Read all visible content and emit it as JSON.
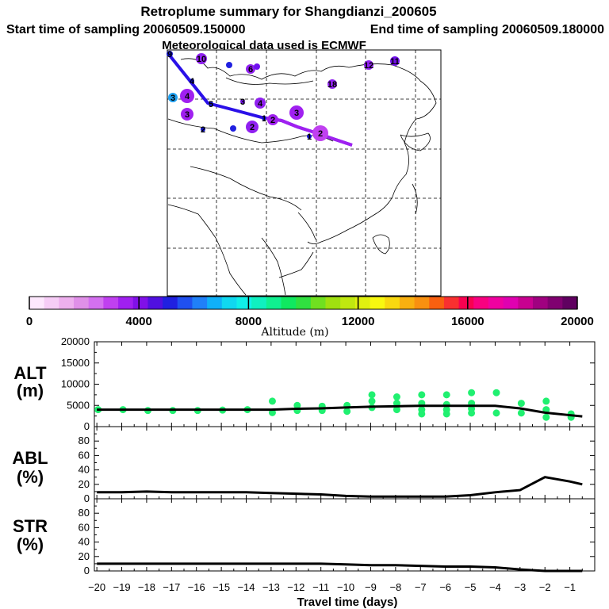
{
  "titles": {
    "line1": "Retroplume summary for Shangdianzi_200605",
    "start": "Start time of sampling 20060509.150000",
    "end": "End time of sampling 20060509.180000",
    "met": "Meteorological data used is ECMWF"
  },
  "colorbar": {
    "colors": [
      "#fde8fd",
      "#f6cdf6",
      "#eeb0ee",
      "#e090e8",
      "#d470f0",
      "#c040f0",
      "#a020f0",
      "#8010e8",
      "#5010e0",
      "#2020e0",
      "#2050f0",
      "#2080f8",
      "#10b0f8",
      "#10d8f0",
      "#10f0e8",
      "#10f0c0",
      "#10f090",
      "#10e860",
      "#30e040",
      "#70e020",
      "#a0e010",
      "#c0e810",
      "#e0f010",
      "#f8f810",
      "#f8d810",
      "#f8b010",
      "#f89010",
      "#f86010",
      "#f83030",
      "#f80050",
      "#f80080",
      "#f000a0",
      "#e000b0",
      "#c80090",
      "#a00080",
      "#800070",
      "#600060"
    ],
    "ticks": [
      0,
      4000,
      8000,
      12000,
      16000,
      20000
    ],
    "label": "Altitude (m)"
  },
  "map": {
    "markers": [
      {
        "label": "9",
        "color": "#1010d0"
      },
      {
        "label": "10",
        "color": "#9020f0"
      },
      {
        "label": "",
        "color": "#2020e0"
      },
      {
        "label": "6",
        "color": "#9020f0"
      },
      {
        "label": "",
        "color": "#7010f0"
      },
      {
        "label": "12",
        "color": "#9020f0"
      },
      {
        "label": "11",
        "color": "#7010e8"
      },
      {
        "label": "4",
        "color": "#1010d0"
      },
      {
        "label": "18",
        "color": "#9020f0"
      },
      {
        "label": "3",
        "color": "#20a0f0"
      },
      {
        "label": "4",
        "color": "#a020f0"
      },
      {
        "label": "5",
        "color": "#1010d0"
      },
      {
        "label": "3",
        "color": "#7010e8"
      },
      {
        "label": "4",
        "color": "#9020f0"
      },
      {
        "label": "3",
        "color": "#a020f0"
      },
      {
        "label": "3",
        "color": "#a020f0"
      },
      {
        "label": "1",
        "color": "#1010d0"
      },
      {
        "label": "2",
        "color": "#1010d0"
      },
      {
        "label": "",
        "color": "#2020e0"
      },
      {
        "label": "2",
        "color": "#9020f0"
      },
      {
        "label": "2",
        "color": "#a020f0"
      },
      {
        "label": "1",
        "color": "#1010d0"
      },
      {
        "label": "2",
        "color": "#c040f0"
      }
    ]
  },
  "chart_data": [
    {
      "type": "line",
      "panel": "ALT",
      "title": "ALT",
      "ylabel": "(m)",
      "x": [
        -20,
        -19,
        -18,
        -17,
        -16,
        -15,
        -14,
        -13,
        -12,
        -11,
        -10,
        -9,
        -8,
        -7,
        -6,
        -5,
        -4,
        -3,
        -2,
        -1,
        -0.5
      ],
      "series": [
        {
          "name": "mean altitude",
          "values": [
            4000,
            4000,
            4000,
            4000,
            4000,
            4000,
            4000,
            4000,
            4200,
            4300,
            4500,
            4700,
            4800,
            4900,
            4900,
            4900,
            4900,
            4300,
            3300,
            2700,
            2400
          ]
        }
      ],
      "scatter": {
        "x": [
          -20,
          -19,
          -18,
          -17,
          -16,
          -15,
          -14,
          -13,
          -13,
          -12,
          -12,
          -11,
          -11,
          -10,
          -10,
          -9,
          -9,
          -9,
          -8,
          -8,
          -8,
          -7,
          -7,
          -7,
          -7,
          -6,
          -6,
          -6,
          -6,
          -5,
          -5,
          -5,
          -5,
          -4,
          -4,
          -3,
          -3,
          -2,
          -2,
          -2,
          -1,
          -1
        ],
        "y": [
          4000,
          4000,
          3800,
          3800,
          3800,
          3900,
          4000,
          6000,
          3300,
          5000,
          3800,
          4800,
          3800,
          5000,
          3600,
          7500,
          6000,
          4500,
          7000,
          5500,
          4000,
          7500,
          5500,
          4000,
          3000,
          7500,
          5200,
          4000,
          3000,
          8000,
          5500,
          4200,
          3200,
          8000,
          3200,
          5500,
          3200,
          6000,
          4000,
          2200,
          3000,
          2200
        ]
      },
      "yticks": [
        0,
        5000,
        10000,
        15000,
        20000
      ],
      "ylim": [
        0,
        20000
      ],
      "xlim": [
        -20,
        0
      ]
    },
    {
      "type": "line",
      "panel": "ABL",
      "title": "ABL",
      "ylabel": "(%)",
      "x": [
        -20,
        -19,
        -18,
        -17,
        -16,
        -15,
        -14,
        -13,
        -12,
        -11,
        -10,
        -9,
        -8,
        -7,
        -6,
        -5,
        -4,
        -3,
        -2,
        -1,
        -0.5
      ],
      "series": [
        {
          "name": "ABL fraction",
          "values": [
            9,
            9,
            10,
            9,
            9,
            9,
            9,
            8,
            7,
            6,
            4,
            3,
            3,
            3,
            3,
            5,
            9,
            12,
            30,
            24,
            20
          ]
        }
      ],
      "yticks": [
        0,
        20,
        40,
        60,
        80
      ],
      "ylim": [
        0,
        100
      ],
      "xlim": [
        -20,
        0
      ]
    },
    {
      "type": "line",
      "panel": "STR",
      "title": "STR",
      "ylabel": "(%)",
      "x": [
        -20,
        -19,
        -18,
        -17,
        -16,
        -15,
        -14,
        -13,
        -12,
        -11,
        -10,
        -9,
        -8,
        -7,
        -6,
        -5,
        -4,
        -3,
        -2,
        -1,
        -0.5
      ],
      "series": [
        {
          "name": "stratospheric fraction",
          "values": [
            10,
            10,
            10,
            10,
            10,
            10,
            10,
            10,
            10,
            10,
            9,
            8,
            8,
            7,
            6,
            6,
            5,
            2,
            0,
            0,
            0
          ]
        }
      ],
      "yticks": [
        0,
        20,
        40,
        60,
        80
      ],
      "ylim": [
        0,
        100
      ],
      "xlim": [
        -20,
        0
      ]
    }
  ],
  "xaxis": {
    "ticks": [
      "−20",
      "−19",
      "−18",
      "−17",
      "−16",
      "−15",
      "−14",
      "−13",
      "−12",
      "−11",
      "−10",
      "−9",
      "−8",
      "−7",
      "−6",
      "−5",
      "−4",
      "−3",
      "−2",
      "−1"
    ],
    "label": "Travel time (days)"
  }
}
